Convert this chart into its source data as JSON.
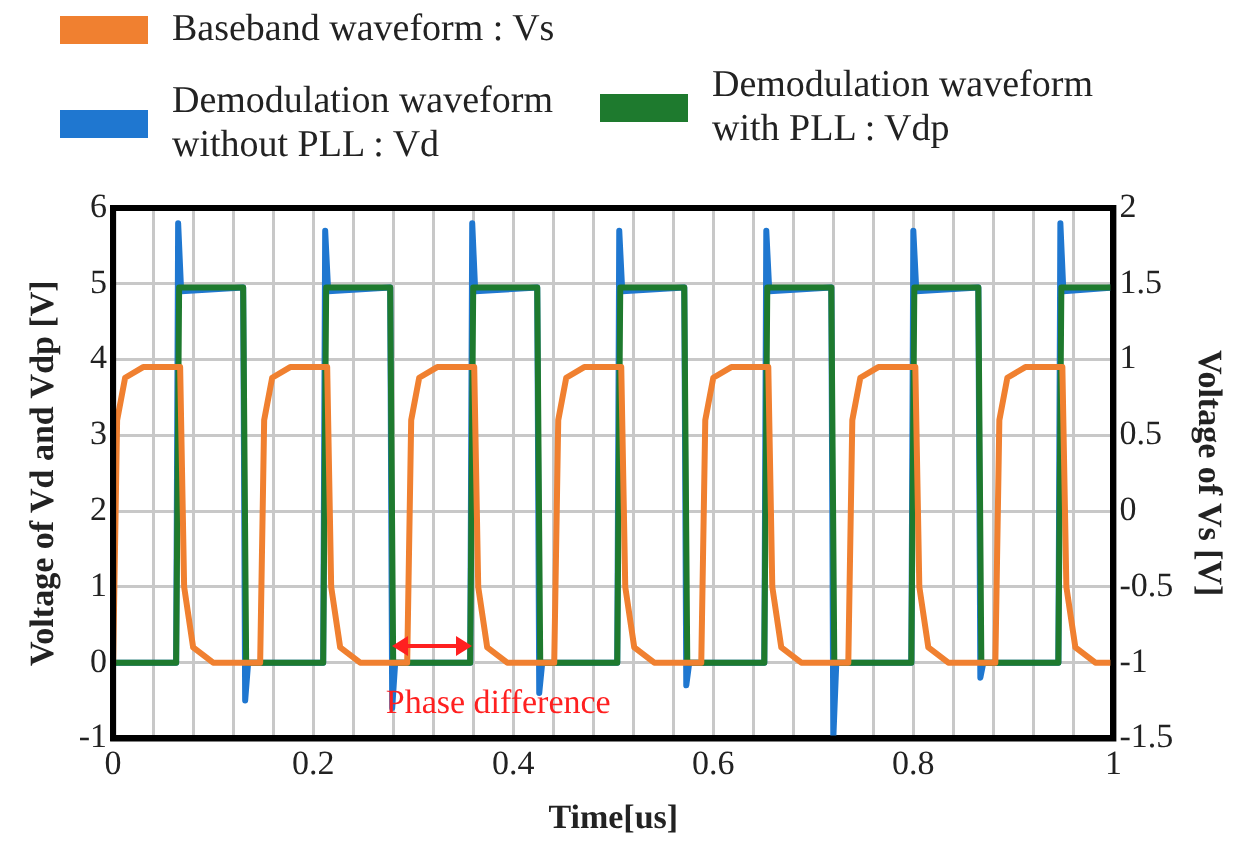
{
  "chart_data": {
    "type": "line",
    "xlabel": "Time[us]",
    "ylabel": "Voltage of Vd and Vdp [V]",
    "y2label": "Voltage of Vs [V]",
    "xlim": [
      0,
      1
    ],
    "xticks": [
      0,
      {
        "value": 0.04,
        "label": null
      },
      {
        "value": 0.08,
        "label": null
      },
      {
        "value": 0.12,
        "label": null
      },
      {
        "value": 0.16,
        "label": null
      },
      0.2,
      {
        "value": 0.24,
        "label": null
      },
      {
        "value": 0.28,
        "label": null
      },
      {
        "value": 0.32,
        "label": null
      },
      {
        "value": 0.36,
        "label": null
      },
      0.4,
      {
        "value": 0.44,
        "label": null
      },
      {
        "value": 0.48,
        "label": null
      },
      {
        "value": 0.52,
        "label": null
      },
      {
        "value": 0.56,
        "label": null
      },
      0.6,
      {
        "value": 0.64,
        "label": null
      },
      {
        "value": 0.68,
        "label": null
      },
      {
        "value": 0.72,
        "label": null
      },
      {
        "value": 0.76,
        "label": null
      },
      0.8,
      {
        "value": 0.84,
        "label": null
      },
      {
        "value": 0.88,
        "label": null
      },
      {
        "value": 0.92,
        "label": null
      },
      {
        "value": 0.96,
        "label": null
      },
      1
    ],
    "ylim": [
      -1,
      6
    ],
    "yticks": [
      -1,
      0,
      1,
      2,
      3,
      4,
      5,
      6
    ],
    "y2lim": [
      -1.5,
      2
    ],
    "y2ticks": [
      -1.5,
      -1,
      -0.5,
      0,
      0.5,
      1,
      1.5,
      2
    ],
    "grid": true,
    "legend": "top",
    "marker": "none",
    "line_style": "solid",
    "annotations": [
      "Phase difference"
    ],
    "series": [
      {
        "name": "Demodulation waveform without PLL : Vd",
        "color": "#1f77d0",
        "x": [
          0,
          0.063,
          0.065,
          0.068,
          0.13,
          0.132,
          0.135,
          0.21,
          0.212,
          0.215,
          0.277,
          0.279,
          0.282,
          0.357,
          0.359,
          0.362,
          0.424,
          0.426,
          0.429,
          0.504,
          0.506,
          0.509,
          0.571,
          0.573,
          0.576,
          0.651,
          0.653,
          0.656,
          0.718,
          0.72,
          0.723,
          0.798,
          0.8,
          0.803,
          0.865,
          0.867,
          0.87,
          0.945,
          0.947,
          0.95,
          1
        ],
        "values": [
          0,
          0,
          5.8,
          4.9,
          4.95,
          -0.5,
          0,
          0,
          5.7,
          4.9,
          4.95,
          -0.6,
          0,
          0,
          5.8,
          4.9,
          4.95,
          -0.4,
          0,
          0,
          5.7,
          4.9,
          4.95,
          -0.3,
          0,
          0,
          5.7,
          4.9,
          4.95,
          -1,
          0,
          0,
          5.7,
          4.9,
          4.95,
          -0.2,
          0,
          0,
          5.8,
          4.9,
          4.95
        ]
      },
      {
        "name": "Demodulation waveform with PLL : Vdp",
        "color": "#1e7a2e",
        "x": [
          0,
          0.063,
          0.066,
          0.13,
          0.133,
          0.21,
          0.213,
          0.277,
          0.28,
          0.357,
          0.36,
          0.424,
          0.427,
          0.504,
          0.507,
          0.571,
          0.574,
          0.651,
          0.654,
          0.718,
          0.721,
          0.798,
          0.801,
          0.865,
          0.868,
          0.945,
          0.948,
          1
        ],
        "values": [
          0,
          0,
          4.95,
          4.95,
          0,
          0,
          4.95,
          4.95,
          0,
          0,
          4.95,
          4.95,
          0,
          0,
          4.95,
          4.95,
          0,
          0,
          4.95,
          4.95,
          0,
          0,
          4.95,
          4.95,
          0,
          0,
          4.95,
          4.95
        ]
      },
      {
        "name": "Baseband waveform : Vs",
        "color": "#f08030",
        "axis": "y2",
        "x": [
          0,
          0.004,
          0.012,
          0.03,
          0.067,
          0.071,
          0.08,
          0.1,
          0.147,
          0.151,
          0.159,
          0.177,
          0.214,
          0.218,
          0.227,
          0.247,
          0.294,
          0.298,
          0.306,
          0.324,
          0.361,
          0.365,
          0.374,
          0.394,
          0.441,
          0.445,
          0.453,
          0.471,
          0.508,
          0.512,
          0.521,
          0.541,
          0.588,
          0.592,
          0.6,
          0.618,
          0.655,
          0.659,
          0.668,
          0.688,
          0.735,
          0.739,
          0.747,
          0.765,
          0.802,
          0.806,
          0.815,
          0.835,
          0.882,
          0.886,
          0.894,
          0.912,
          0.949,
          0.953,
          0.962,
          0.982,
          1
        ],
        "values": [
          -1,
          0.6,
          0.88,
          0.95,
          0.95,
          -0.5,
          -0.9,
          -1,
          -1,
          0.6,
          0.88,
          0.95,
          0.95,
          -0.5,
          -0.9,
          -1,
          -1,
          0.6,
          0.88,
          0.95,
          0.95,
          -0.5,
          -0.9,
          -1,
          -1,
          0.6,
          0.88,
          0.95,
          0.95,
          -0.5,
          -0.9,
          -1,
          -1,
          0.6,
          0.88,
          0.95,
          0.95,
          -0.5,
          -0.9,
          -1,
          -1,
          0.6,
          0.88,
          0.95,
          0.95,
          -0.5,
          -0.9,
          -1,
          -1,
          0.6,
          0.88,
          0.95,
          0.95,
          -0.5,
          -0.9,
          -1,
          -1
        ]
      }
    ]
  }
}
